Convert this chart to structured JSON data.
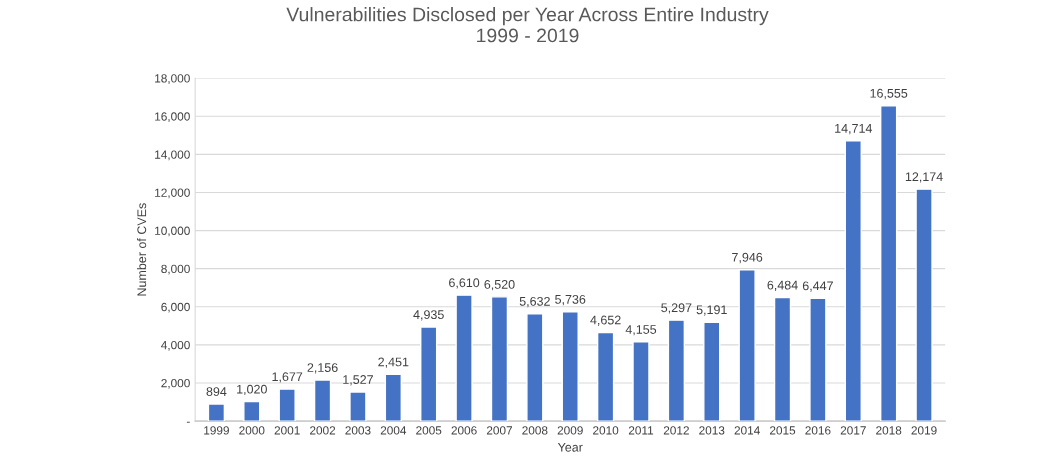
{
  "chart_data": {
    "type": "bar",
    "title": "Vulnerabilities Disclosed per Year Across Entire Industry\n1999 - 2019",
    "xlabel": "Year",
    "ylabel": "Number of CVEs",
    "categories": [
      "1999",
      "2000",
      "2001",
      "2002",
      "2003",
      "2004",
      "2005",
      "2006",
      "2007",
      "2008",
      "2009",
      "2010",
      "2011",
      "2012",
      "2013",
      "2014",
      "2015",
      "2016",
      "2017",
      "2018",
      "2019"
    ],
    "values": [
      894,
      1020,
      1677,
      2156,
      1527,
      2451,
      4935,
      6610,
      6520,
      5632,
      5736,
      4652,
      4155,
      5297,
      5191,
      7946,
      6484,
      6447,
      14714,
      16555,
      12174
    ],
    "value_labels": [
      "894",
      "1,020",
      "1,677",
      "2,156",
      "1,527",
      "2,451",
      "4,935",
      "6,610",
      "6,520",
      "5,632",
      "5,736",
      "4,652",
      "4,155",
      "5,297",
      "5,191",
      "7,946",
      "6,484",
      "6,447",
      "14,714",
      "16,555",
      "12,174"
    ],
    "color": "#4472c4",
    "ylim": [
      0,
      18000
    ],
    "yticks": [
      {
        "value": 0,
        "label": "-"
      },
      {
        "value": 2000,
        "label": "2,000"
      },
      {
        "value": 4000,
        "label": "4,000"
      },
      {
        "value": 6000,
        "label": "6,000"
      },
      {
        "value": 8000,
        "label": "8,000"
      },
      {
        "value": 10000,
        "label": "10,000"
      },
      {
        "value": 12000,
        "label": "12,000"
      },
      {
        "value": 14000,
        "label": "14,000"
      },
      {
        "value": 16000,
        "label": "16,000"
      },
      {
        "value": 18000,
        "label": "18,000"
      }
    ],
    "grid": "y"
  }
}
